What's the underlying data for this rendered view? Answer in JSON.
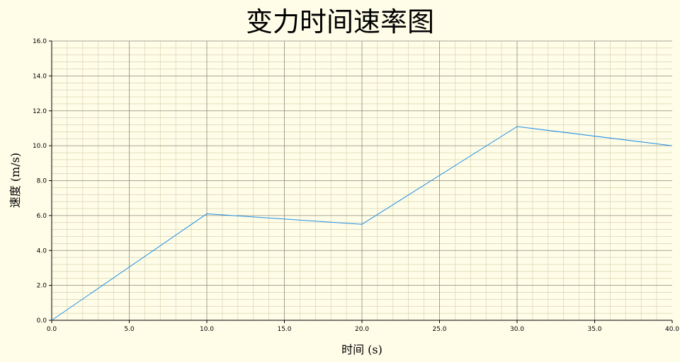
{
  "chart_data": {
    "type": "line",
    "title": "变力时间速率图",
    "xlabel": "时间 (s)",
    "ylabel": "速度 (m/s)",
    "xlim": [
      0,
      40
    ],
    "ylim": [
      0,
      16
    ],
    "x_ticks": [
      "0.0",
      "5.0",
      "10.0",
      "15.0",
      "20.0",
      "25.0",
      "30.0",
      "35.0",
      "40.0"
    ],
    "y_ticks": [
      "0.0",
      "2.0",
      "4.0",
      "6.0",
      "8.0",
      "10.0",
      "12.0",
      "14.0",
      "16.0"
    ],
    "grid": true,
    "series": [
      {
        "x": [
          0,
          10,
          20,
          30,
          40
        ],
        "values": [
          0,
          6.1,
          5.5,
          11.1,
          10.0
        ],
        "color": "#1f8fe5"
      }
    ],
    "colors": {
      "background": "#fffde8",
      "major_grid": "#8a8a78",
      "minor_grid": "#d6d3b0",
      "axis": "#000000"
    }
  }
}
